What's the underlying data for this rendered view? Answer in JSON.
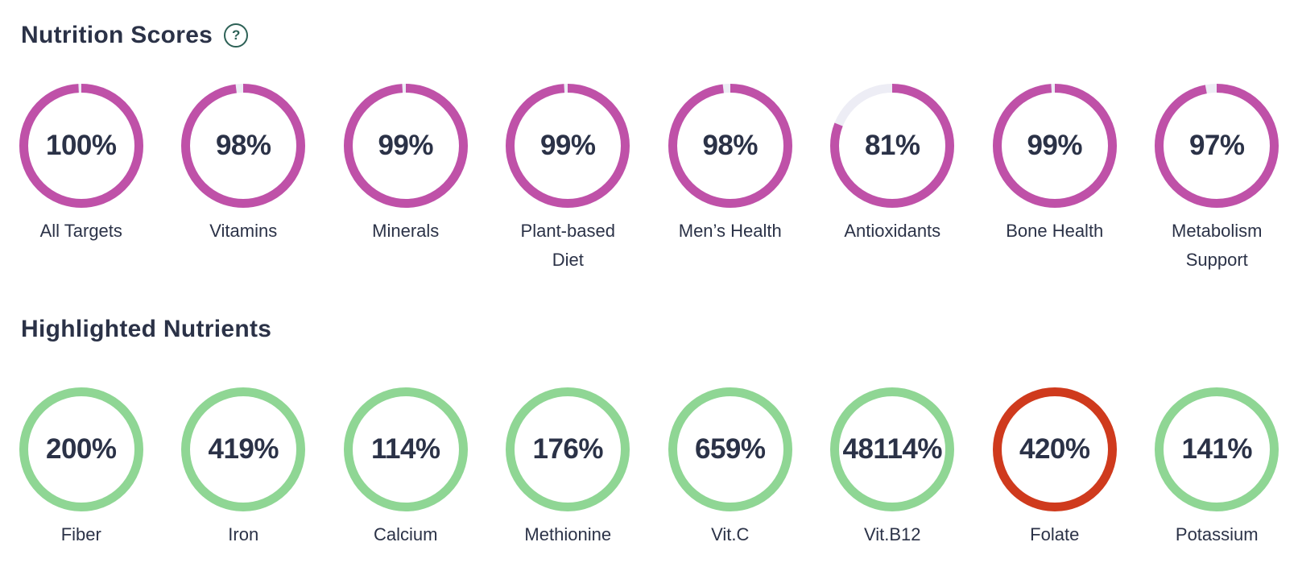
{
  "sections": [
    {
      "title": "Nutrition Scores",
      "help_glyph": "?"
    },
    {
      "title": "Highlighted Nutrients"
    }
  ],
  "colors": {
    "text": "#2b3247",
    "score_ring": "#bf51a8",
    "score_track": "#ededf5",
    "nutrient_ring_ok": "#8fd694",
    "nutrient_ring_excess": "#cf3a1d",
    "help_icon": "#2d6156"
  },
  "chart_data": [
    {
      "type": "pie",
      "variant": "donut-gauge-row",
      "title": "Nutrition Scores",
      "unit": "%",
      "categories": [
        "All Targets",
        "Vitamins",
        "Minerals",
        "Plant-based Diet",
        "Men’s Health",
        "Antioxidants",
        "Bone Health",
        "Metabolism Support"
      ],
      "values": [
        100,
        98,
        99,
        99,
        98,
        81,
        99,
        97
      ],
      "display_values": [
        "100%",
        "98%",
        "99%",
        "99%",
        "98%",
        "81%",
        "99%",
        "97%"
      ],
      "value_range": [
        0,
        100
      ],
      "ring_color": "#bf51a8",
      "track_color": "#ededf5",
      "show_seam_at_100": true,
      "gauge_start": "top",
      "gauge_direction": "clockwise"
    },
    {
      "type": "pie",
      "variant": "donut-gauge-row",
      "title": "Highlighted Nutrients",
      "unit": "%",
      "categories": [
        "Fiber",
        "Iron",
        "Calcium",
        "Methionine",
        "Vit.C",
        "Vit.B12",
        "Folate",
        "Potassium"
      ],
      "values": [
        200,
        419,
        114,
        176,
        659,
        48114,
        420,
        141
      ],
      "display_values": [
        "200%",
        "419%",
        "114%",
        "176%",
        "659%",
        "48114%",
        "420%",
        "141%"
      ],
      "ring_color": "#8fd694",
      "colors": [
        "#8fd694",
        "#8fd694",
        "#8fd694",
        "#8fd694",
        "#8fd694",
        "#8fd694",
        "#cf3a1d",
        "#8fd694"
      ],
      "gauge_start": "top",
      "gauge_direction": "clockwise"
    }
  ]
}
